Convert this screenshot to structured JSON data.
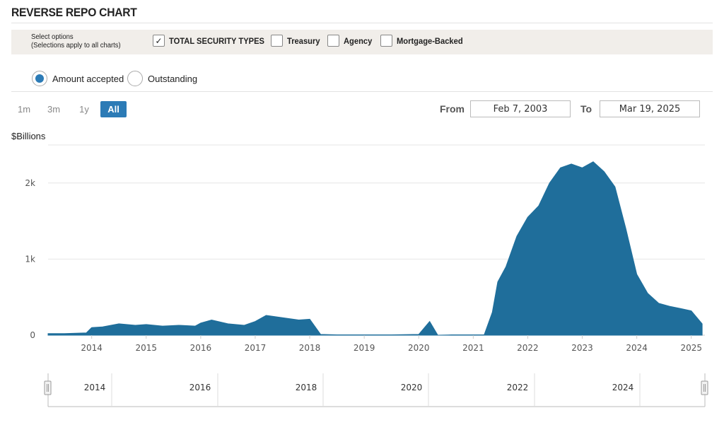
{
  "header": {
    "title": "REVERSE REPO CHART"
  },
  "options": {
    "note_line1": "Select options",
    "note_line2": "(Selections apply to all charts)",
    "checkboxes": [
      {
        "label": "TOTAL SECURITY TYPES",
        "checked": true
      },
      {
        "label": "Treasury",
        "checked": false
      },
      {
        "label": "Agency",
        "checked": false
      },
      {
        "label": "Mortgage-Backed",
        "checked": false
      }
    ]
  },
  "mode": {
    "amount_accepted": "Amount accepted",
    "outstanding": "Outstanding",
    "selected": "amount_accepted"
  },
  "range_buttons": {
    "b1m": "1m",
    "b3m": "3m",
    "b1y": "1y",
    "ball": "All",
    "active": "All"
  },
  "dates": {
    "from_label": "From",
    "from_value": "Feb 7, 2003",
    "to_label": "To",
    "to_value": "Mar 19, 2025"
  },
  "colors": {
    "accent": "#2c7bb6",
    "series": "#1f6e9b"
  },
  "chart_data": {
    "type": "area",
    "ylabel": "$Billions",
    "ylim": [
      0,
      2500
    ],
    "yticks": [
      0,
      1000,
      2000
    ],
    "ytick_labels": [
      "0",
      "1k",
      "2k"
    ],
    "xticks": [
      "2014",
      "2015",
      "2016",
      "2017",
      "2018",
      "2019",
      "2020",
      "2021",
      "2022",
      "2023",
      "2024",
      "2025"
    ],
    "grid": true,
    "series": [
      {
        "x": [
          2013.2,
          2013.5,
          2013.9,
          2014.0,
          2014.2,
          2014.5,
          2014.8,
          2015.0,
          2015.3,
          2015.6,
          2015.9,
          2016.0,
          2016.2,
          2016.5,
          2016.8,
          2017.0,
          2017.2,
          2017.5,
          2017.8,
          2018.0,
          2018.2,
          2018.5,
          2019.0,
          2019.5,
          2020.0,
          2020.2,
          2020.35,
          2020.6,
          2021.0,
          2021.2,
          2021.35,
          2021.45,
          2021.6,
          2021.8,
          2022.0,
          2022.2,
          2022.4,
          2022.6,
          2022.8,
          2023.0,
          2023.2,
          2023.4,
          2023.6,
          2023.8,
          2024.0,
          2024.2,
          2024.4,
          2024.6,
          2024.8,
          2025.0,
          2025.2
        ],
        "y": [
          20,
          20,
          30,
          100,
          110,
          150,
          130,
          140,
          120,
          130,
          120,
          160,
          200,
          150,
          130,
          180,
          260,
          230,
          200,
          210,
          10,
          5,
          5,
          5,
          10,
          180,
          0,
          5,
          5,
          5,
          300,
          700,
          900,
          1300,
          1550,
          1700,
          2000,
          2200,
          2250,
          2200,
          2280,
          2150,
          1950,
          1400,
          800,
          550,
          420,
          380,
          350,
          320,
          150
        ]
      }
    ]
  },
  "navigator": {
    "labels": [
      "2014",
      "2016",
      "2018",
      "2020",
      "2022",
      "2024"
    ]
  }
}
